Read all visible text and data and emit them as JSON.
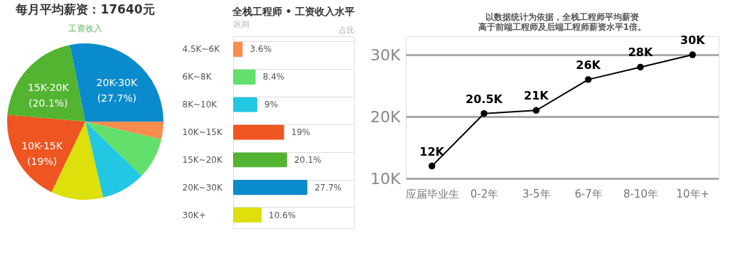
{
  "chart_data": [
    {
      "type": "pie",
      "title": "每月平均薪资：17640元",
      "subtitle": "工资收入",
      "categories": [
        null,
        null,
        null,
        null,
        "10K-15K",
        "15K-20K",
        "20K-30K"
      ],
      "values": [
        3.6,
        8.4,
        9,
        10.6,
        19,
        20.1,
        27.7
      ],
      "colors": [
        "#f98c4e",
        "#63e06b",
        "#22c7e3",
        "#dde00a",
        "#ee5521",
        "#52b431",
        "#0a8bcc"
      ],
      "value_labels": [
        null,
        null,
        null,
        null,
        "(19%)",
        "(20.1%)",
        "(27.7%)"
      ],
      "legend": false
    },
    {
      "type": "bar",
      "orientation": "horizontal",
      "title": "全栈工程师 • 工资收入水平",
      "ylabel": "区间",
      "xlabel": "占比",
      "categories": [
        "4.5K~6K",
        "6K~8K",
        "8K~10K",
        "10K~15K",
        "15K~20K",
        "20K~30K",
        "30K+"
      ],
      "values": [
        3.6,
        8.4,
        9,
        19,
        20.1,
        27.7,
        10.6
      ],
      "colors": [
        "#f98c4e",
        "#63e06b",
        "#22c7e3",
        "#ee5521",
        "#52b431",
        "#0a8bcc",
        "#dde00a"
      ],
      "value_labels": [
        "3.6%",
        "8.4%",
        "9%",
        "19%",
        "20.1%",
        "27.7%",
        "10.6%"
      ],
      "xlim": [
        0,
        45
      ],
      "tick_labels": "y",
      "grid": "y",
      "legend": false
    },
    {
      "type": "line",
      "title": [
        "以数据统计为依据，全栈工程师平均薪资",
        "高于前端工程师及后端工程师薪资水平1倍。"
      ],
      "categories": [
        "应届毕业生",
        "0-2年",
        "3-5年",
        "6-7年",
        "8-10年",
        "10年+"
      ],
      "series": [
        {
          "color": "#000000",
          "values": [
            12,
            20.5,
            21,
            26,
            28,
            30
          ]
        }
      ],
      "value_labels": [
        "12K",
        "20.5K",
        "21K",
        "26K",
        "28K",
        "30K"
      ],
      "ylim": [
        10,
        33
      ],
      "yticks": [
        {
          "value": 10,
          "label": "10K"
        },
        {
          "value": 20,
          "label": "20K"
        },
        {
          "value": 30,
          "label": "30K"
        }
      ],
      "grid": "y",
      "marker": "circle",
      "line_style": "solid",
      "legend": false
    }
  ]
}
